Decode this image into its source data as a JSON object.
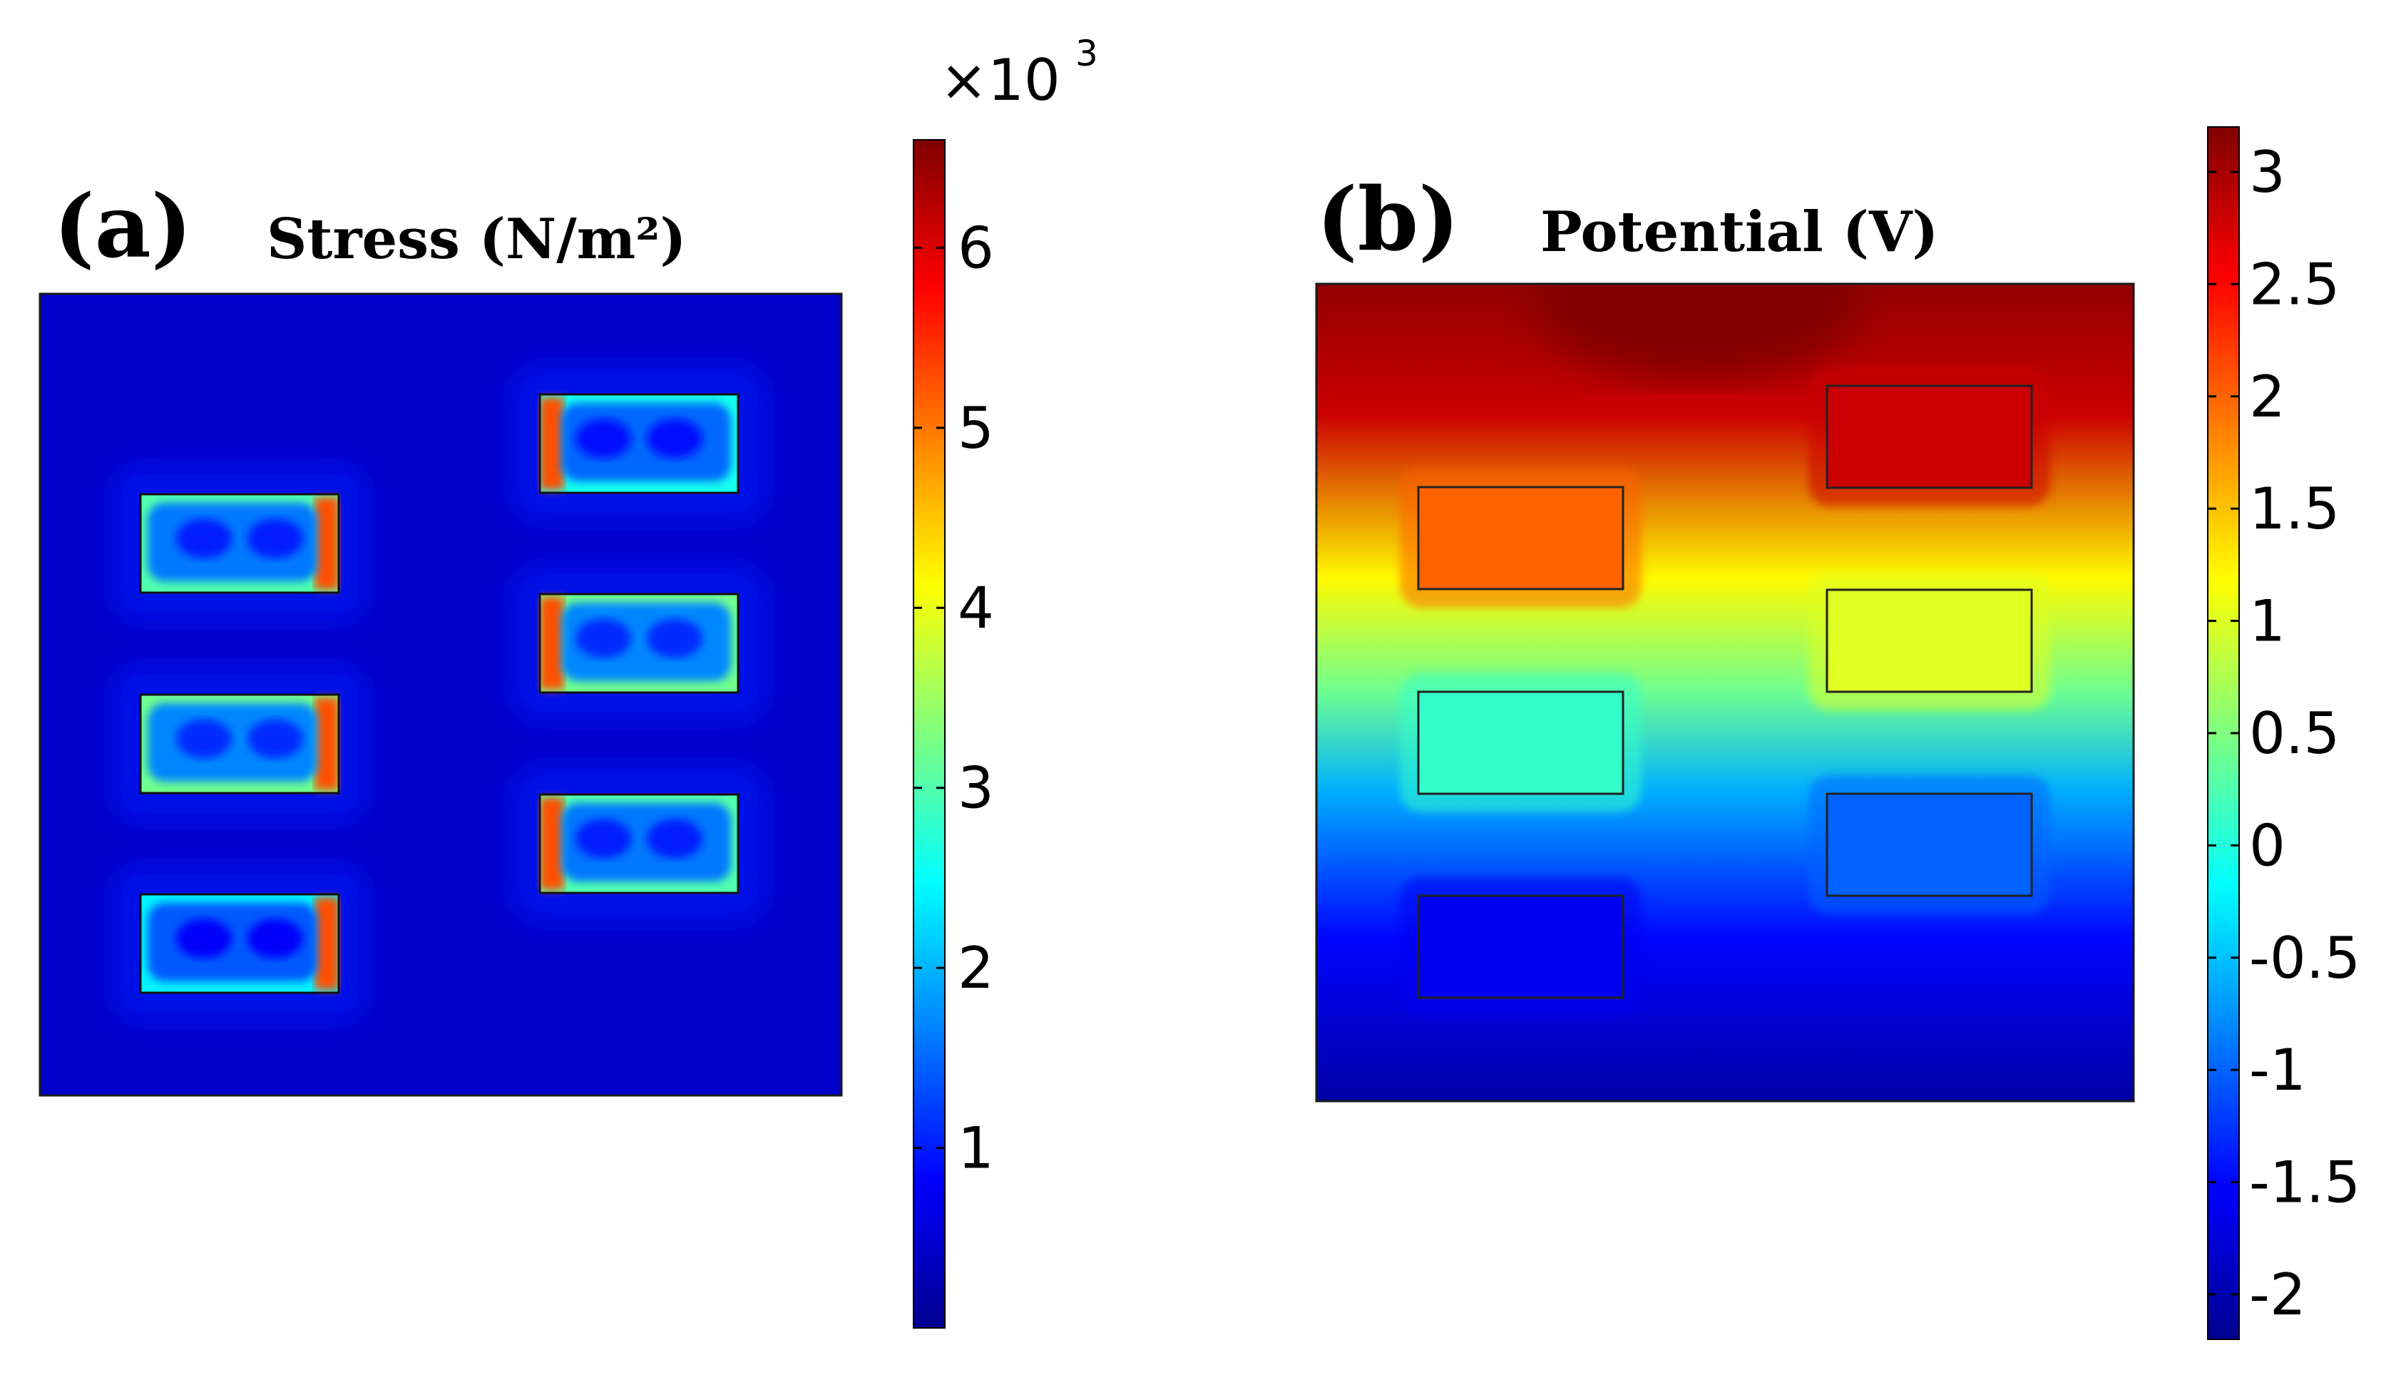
{
  "chart_data": [
    {
      "type": "heatmap",
      "panel_label": "(a)",
      "title": "Stress (N/m²)",
      "quantity": "Stress",
      "unit": "N/m²",
      "colorbar": {
        "multiplier_base": "×10",
        "multiplier_exponent": "3",
        "min": 0,
        "max": 6.6,
        "ticks": [
          {
            "value": 1,
            "label": "1"
          },
          {
            "value": 2,
            "label": "2"
          },
          {
            "value": 3,
            "label": "3"
          },
          {
            "value": 4,
            "label": "4"
          },
          {
            "value": 5,
            "label": "5"
          },
          {
            "value": 6,
            "label": "6"
          }
        ]
      },
      "background_level": 0.5,
      "inclusions": [
        {
          "name": "left-top",
          "inner_level": 1.6,
          "edge_level": 3.0,
          "hot_edge": "right"
        },
        {
          "name": "left-middle",
          "inner_level": 1.7,
          "edge_level": 3.2,
          "hot_edge": "right"
        },
        {
          "name": "left-bottom",
          "inner_level": 1.4,
          "edge_level": 2.4,
          "hot_edge": "right"
        },
        {
          "name": "right-top",
          "inner_level": 1.5,
          "edge_level": 2.6,
          "hot_edge": "left"
        },
        {
          "name": "right-middle",
          "inner_level": 1.7,
          "edge_level": 3.2,
          "hot_edge": "left"
        },
        {
          "name": "right-bottom",
          "inner_level": 1.6,
          "edge_level": 3.0,
          "hot_edge": "left"
        }
      ]
    },
    {
      "type": "heatmap",
      "panel_label": "(b)",
      "title": "Potential (V)",
      "quantity": "Potential",
      "unit": "V",
      "colorbar": {
        "min": -2.2,
        "max": 3.2,
        "ticks": [
          {
            "value": 3,
            "label": "3"
          },
          {
            "value": 2.5,
            "label": "2.5"
          },
          {
            "value": 2,
            "label": "2"
          },
          {
            "value": 1.5,
            "label": "1.5"
          },
          {
            "value": 1,
            "label": "1"
          },
          {
            "value": 0.5,
            "label": "0.5"
          },
          {
            "value": 0,
            "label": "0"
          },
          {
            "value": -0.5,
            "label": "-0.5"
          },
          {
            "value": -1,
            "label": "-1"
          },
          {
            "value": -1.5,
            "label": "-1.5"
          },
          {
            "value": -2,
            "label": "-2"
          }
        ]
      },
      "vertical_profile": [
        {
          "position": "top",
          "value": 3.1
        },
        {
          "position": "upper",
          "value": 2.8
        },
        {
          "position": "middle-upper",
          "value": 1.2
        },
        {
          "position": "middle",
          "value": 0.4
        },
        {
          "position": "middle-lower",
          "value": -0.6
        },
        {
          "position": "lower",
          "value": -1.5
        },
        {
          "position": "bottom",
          "value": -2.0
        }
      ],
      "inclusions": [
        {
          "name": "left-top",
          "value": 2.0
        },
        {
          "name": "left-middle",
          "value": 0.1
        },
        {
          "name": "left-bottom",
          "value": -1.6
        },
        {
          "name": "right-top",
          "value": 2.8
        },
        {
          "name": "right-middle",
          "value": 1.0
        },
        {
          "name": "right-bottom",
          "value": -1.0
        }
      ]
    }
  ]
}
